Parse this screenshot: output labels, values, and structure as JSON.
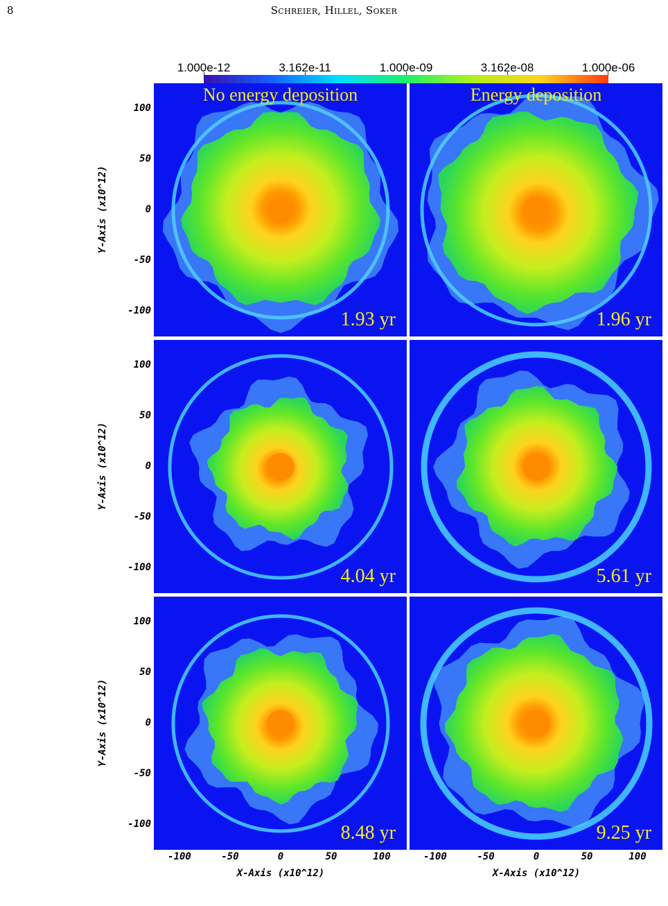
{
  "page": {
    "number": "8",
    "running_head": "Schreier, Hillel, Soker"
  },
  "colorbar": {
    "labels": [
      "1.000e-12",
      "3.162e-11",
      "1.000e-09",
      "3.162e-08",
      "1.000e-06"
    ],
    "scale": "log",
    "range": [
      1e-12,
      1e-06
    ],
    "colors": [
      "#3a10b0",
      "#1660ff",
      "#00e0ff",
      "#1ef06a",
      "#b4f01e",
      "#ffd21e",
      "#ff3a10"
    ]
  },
  "figure": {
    "column_titles": [
      "No energy deposition",
      "Energy deposition"
    ],
    "panels": [
      {
        "time": "1.93 yr",
        "column": "No energy deposition",
        "row": 1
      },
      {
        "time": "1.96 yr",
        "column": "Energy deposition",
        "row": 1
      },
      {
        "time": "4.04 yr",
        "column": "No energy deposition",
        "row": 2
      },
      {
        "time": "5.61 yr",
        "column": "Energy deposition",
        "row": 2
      },
      {
        "time": "8.48 yr",
        "column": "No energy deposition",
        "row": 3
      },
      {
        "time": "9.25 yr",
        "column": "Energy deposition",
        "row": 3
      }
    ],
    "y_axis": {
      "title": "Y-Axis (x10^12)",
      "ticks": [
        "100",
        "50",
        "0",
        "-50",
        "-100"
      ]
    },
    "x_axis": {
      "title": "X-Axis (x10^12)",
      "ticks": [
        "-100",
        "-50",
        "0",
        "50",
        "100"
      ]
    },
    "colors": {
      "background": "#0a14f0",
      "label": "#f7ec1e",
      "core": "#ff8c00"
    }
  }
}
